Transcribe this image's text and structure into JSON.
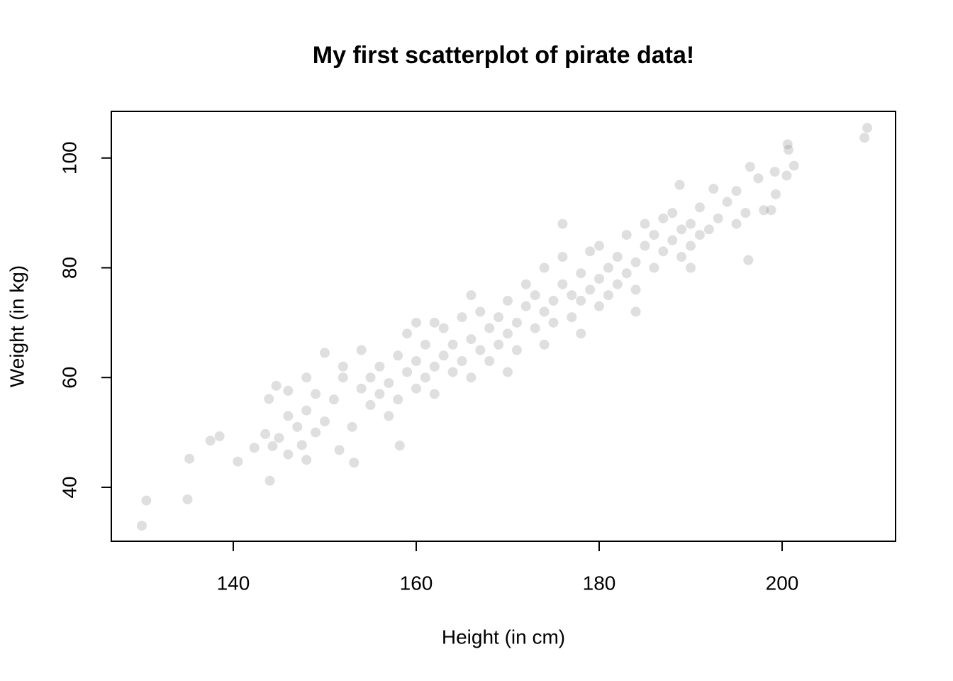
{
  "chart_data": {
    "type": "scatter",
    "title": "My first scatterplot of pirate data!",
    "x_label": "Height (in cm)",
    "y_label": "Weight (in kg)",
    "color": "#808080",
    "xlim": [
      126.67,
      212.4
    ],
    "ylim": [
      30.17,
      108.5
    ],
    "xticks": [
      140,
      160,
      180,
      200
    ],
    "yticks": [
      40,
      60,
      80,
      100
    ],
    "x": [
      130,
      130.5,
      135,
      135.2,
      137.5,
      138.5,
      140.5,
      142.3,
      143.5,
      144,
      144.3,
      144.7,
      143.9,
      146,
      147.5,
      148,
      209.3,
      209,
      200.6,
      200.7,
      201.3,
      200.5,
      199.2,
      199.3,
      196.5,
      197.4,
      196.3,
      198,
      198.8,
      188.8,
      192.5,
      190,
      153.2,
      151.6,
      150,
      158.2,
      150,
      151,
      152,
      153,
      154,
      154,
      155,
      156,
      156,
      157,
      157,
      158,
      158,
      159,
      159,
      160,
      160,
      160,
      161,
      161,
      162,
      162,
      163,
      163,
      164,
      164,
      165,
      165,
      166,
      166,
      167,
      167,
      168,
      168,
      169,
      169,
      170,
      170,
      171,
      171,
      172,
      172,
      173,
      173,
      174,
      174,
      175,
      175,
      176,
      176,
      177,
      177,
      178,
      178,
      179,
      179,
      180,
      180,
      181,
      181,
      182,
      182,
      183,
      183,
      184,
      184,
      185,
      185,
      186,
      186,
      187,
      187,
      188,
      188,
      189,
      189,
      190,
      190,
      191,
      191,
      192,
      193,
      194,
      195,
      195,
      196,
      146,
      147,
      148,
      149,
      149,
      145,
      146,
      148,
      152,
      155,
      162,
      166,
      174,
      178,
      180,
      184,
      170,
      176
    ],
    "values": [
      33,
      37.6,
      37.8,
      45.2,
      48.5,
      49.3,
      44.7,
      47.2,
      49.7,
      41.2,
      47.5,
      58.5,
      56.1,
      57.6,
      47.7,
      60,
      105.5,
      103.7,
      102.5,
      101.5,
      98.6,
      96.8,
      97.5,
      93.4,
      98.4,
      96.3,
      81.4,
      90.5,
      90.5,
      95.1,
      94.4,
      80,
      44.5,
      46.8,
      64.5,
      47.6,
      52,
      56,
      60,
      51,
      58,
      65,
      55,
      62,
      57,
      53,
      59,
      64,
      56,
      61,
      68,
      58,
      63,
      70,
      66,
      60,
      62,
      57,
      64,
      69,
      61,
      66,
      63,
      71,
      67,
      60,
      65,
      72,
      69,
      63,
      71,
      66,
      68,
      74,
      70,
      65,
      73,
      77,
      69,
      75,
      72,
      80,
      74,
      70,
      77,
      82,
      75,
      71,
      79,
      74,
      76,
      83,
      78,
      73,
      80,
      75,
      82,
      77,
      79,
      86,
      81,
      76,
      84,
      88,
      80,
      86,
      83,
      89,
      85,
      90,
      82,
      87,
      88,
      84,
      86,
      91,
      87,
      89,
      92,
      88,
      94,
      90,
      53,
      51,
      54,
      50,
      57,
      49,
      46,
      45,
      62,
      60,
      70,
      75,
      66,
      68,
      84,
      72,
      61,
      88
    ]
  }
}
